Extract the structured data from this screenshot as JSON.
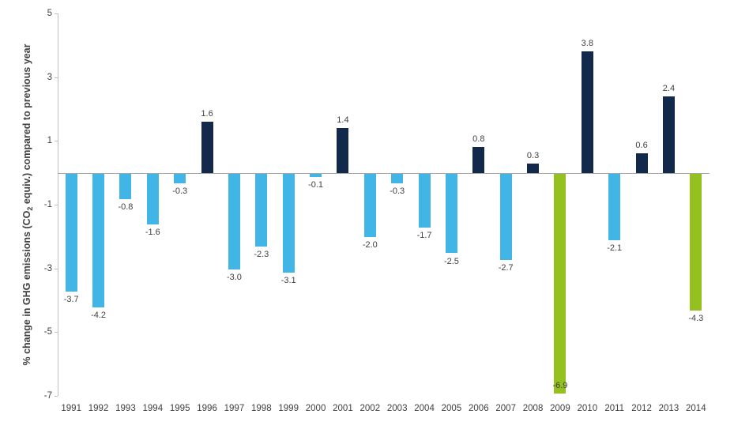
{
  "chart_data": {
    "type": "bar",
    "title": "",
    "ylabel_parts": {
      "prefix": "% change in GHG emissions (CO",
      "sub": "2",
      "suffix": " equiv.) compared to previous year"
    },
    "xlabel": "",
    "categories": [
      "1991",
      "1992",
      "1993",
      "1994",
      "1995",
      "1996",
      "1997",
      "1998",
      "1999",
      "2000",
      "2001",
      "2002",
      "2003",
      "2004",
      "2005",
      "2006",
      "2007",
      "2008",
      "2009",
      "2010",
      "2011",
      "2012",
      "2013",
      "2014"
    ],
    "values": [
      -3.7,
      -4.2,
      -0.8,
      -1.6,
      -0.3,
      1.6,
      -3.0,
      -2.3,
      -3.1,
      -0.1,
      1.4,
      -2.0,
      -0.3,
      -1.7,
      -2.5,
      0.8,
      -2.7,
      0.3,
      -6.9,
      3.8,
      -2.1,
      0.6,
      2.4,
      -4.3
    ],
    "roles": [
      "decrease",
      "decrease",
      "decrease",
      "decrease",
      "decrease",
      "increase",
      "decrease",
      "decrease",
      "decrease",
      "decrease",
      "increase",
      "decrease",
      "decrease",
      "decrease",
      "decrease",
      "increase",
      "decrease",
      "increase",
      "highlight",
      "increase",
      "decrease",
      "increase",
      "increase",
      "highlight"
    ],
    "value_label_format": "one-decimal",
    "inside_label_years": [
      "2009"
    ],
    "ylim": [
      -7,
      5
    ],
    "yticks": [
      5,
      3,
      1,
      -1,
      -3,
      -5,
      -7
    ],
    "grid": false,
    "legend": "none"
  },
  "colors": {
    "decrease_bar": "#41b6e6",
    "increase_bar": "#12294b",
    "highlight_bar": "#94c11f",
    "axis_line": "#bfbfbf",
    "baseline": "#a6a6a6",
    "value_label": "#404040",
    "tick_label": "#404040"
  }
}
